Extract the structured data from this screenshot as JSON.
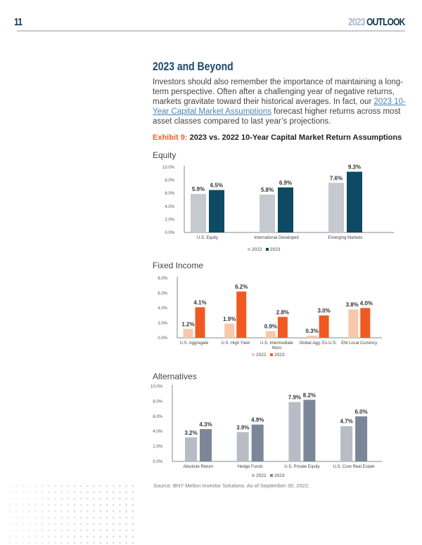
{
  "header": {
    "page_number": "11",
    "year": "2023",
    "outlook": "OUTLOOK"
  },
  "section": {
    "title": "2023 and Beyond",
    "paragraph_before": "Investors should also remember the importance of maintaining a long-term perspective. Often after a challenging year of negative returns, markets gravitate toward their historical averages. In fact, our ",
    "link": "2023 10-Year Capital Market Assumptions",
    "paragraph_after": " forecast higher returns across most asset classes compared to last year’s projections."
  },
  "exhibit": {
    "number": "Exhibit 9:",
    "title": "2023 vs. 2022 10-Year Capital Market Return Assumptions"
  },
  "chart_data": [
    {
      "type": "bar",
      "title": "Equity",
      "categories": [
        "U.S. Equity",
        "International Developed",
        "Emerging Markets"
      ],
      "series": [
        {
          "name": "2022",
          "values": [
            5.9,
            5.8,
            7.6
          ],
          "color": "#c5c9d0"
        },
        {
          "name": "2023",
          "values": [
            6.5,
            6.9,
            9.3
          ],
          "color": "#0e4a63"
        }
      ],
      "yticks": [
        "0.0%",
        "2.0%",
        "4.0%",
        "6.0%",
        "8.0%",
        "10.0%"
      ],
      "ylim": [
        0,
        10
      ],
      "legend": "bottom",
      "grid": false
    },
    {
      "type": "bar",
      "title": "Fixed Income",
      "categories": [
        "U.S. Aggregate",
        "U.S. High Yield",
        "U.S. Intermediate Muni",
        "Global Agg. Ex-U.S.",
        "EM Local Currency"
      ],
      "series": [
        {
          "name": "2022",
          "values": [
            1.2,
            1.9,
            0.9,
            0.3,
            3.8
          ],
          "color": "#f8c8aa"
        },
        {
          "name": "2023",
          "values": [
            4.1,
            6.2,
            2.8,
            3.0,
            4.0
          ],
          "color": "#f05a22"
        }
      ],
      "yticks": [
        "0.0%",
        "2.0%",
        "4.0%",
        "6.0%",
        "8.0%"
      ],
      "ylim": [
        0,
        8
      ],
      "legend": "bottom",
      "grid": false
    },
    {
      "type": "bar",
      "title": "Alternatives",
      "categories": [
        "Absolute Return",
        "Hedge Funds",
        "U.S. Private Equity",
        "U.S. Core Real Estate"
      ],
      "series": [
        {
          "name": "2022",
          "values": [
            3.2,
            3.9,
            7.9,
            4.7
          ],
          "color": "#b8bcc4"
        },
        {
          "name": "2023",
          "values": [
            4.3,
            4.9,
            8.2,
            6.0
          ],
          "color": "#7b8799"
        }
      ],
      "yticks": [
        "0.0%",
        "2.0%",
        "4.0%",
        "6.0%",
        "8.0%",
        "10.0%"
      ],
      "ylim": [
        0,
        10
      ],
      "legend": "bottom",
      "grid": false
    }
  ],
  "source": "Source: BNY Mellon Investor Solutions. As of September 30, 2022."
}
